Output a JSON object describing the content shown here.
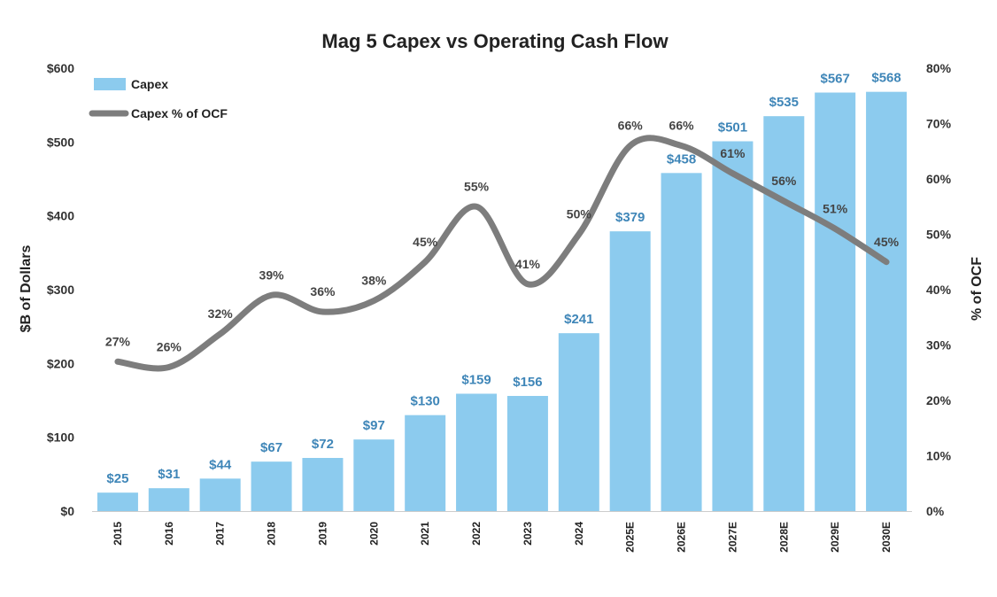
{
  "chart_data": {
    "type": "bar",
    "title": "Mag 5 Capex vs Operating Cash Flow",
    "categories": [
      "2015",
      "2016",
      "2017",
      "2018",
      "2019",
      "2020",
      "2021",
      "2022",
      "2023",
      "2024",
      "2025E",
      "2026E",
      "2027E",
      "2028E",
      "2029E",
      "2030E"
    ],
    "series": [
      {
        "name": "Capex",
        "type": "bar",
        "axis": "left",
        "values": [
          25,
          31,
          44,
          67,
          72,
          97,
          130,
          159,
          156,
          241,
          379,
          458,
          501,
          535,
          567,
          568
        ],
        "labels": [
          "$25",
          "$31",
          "$44",
          "$67",
          "$72",
          "$97",
          "$130",
          "$159",
          "$156",
          "$241",
          "$379",
          "$458",
          "$501",
          "$535",
          "$567",
          "$568"
        ]
      },
      {
        "name": "Capex % of OCF",
        "type": "line",
        "axis": "right",
        "values": [
          27,
          26,
          32,
          39,
          36,
          38,
          45,
          55,
          41,
          50,
          66,
          66,
          61,
          56,
          51,
          45
        ],
        "labels": [
          "27%",
          "26%",
          "32%",
          "39%",
          "36%",
          "38%",
          "45%",
          "55%",
          "41%",
          "50%",
          "66%",
          "66%",
          "61%",
          "56%",
          "51%",
          "45%"
        ]
      }
    ],
    "ylabel": "$B of Dollars",
    "ylim": [
      0,
      600
    ],
    "y_ticks": [
      "$0",
      "$100",
      "$200",
      "$300",
      "$400",
      "$500",
      "$600"
    ],
    "y2label": "% of OCF",
    "y2lim": [
      0,
      80
    ],
    "y2_ticks": [
      "0%",
      "10%",
      "20%",
      "30%",
      "40%",
      "50%",
      "60%",
      "70%",
      "80%"
    ],
    "legend_position": "top-left",
    "grid": false,
    "colors": {
      "bar": "#8ccbee",
      "bar_label": "#3f86b8",
      "line": "#7d7d7d"
    }
  }
}
